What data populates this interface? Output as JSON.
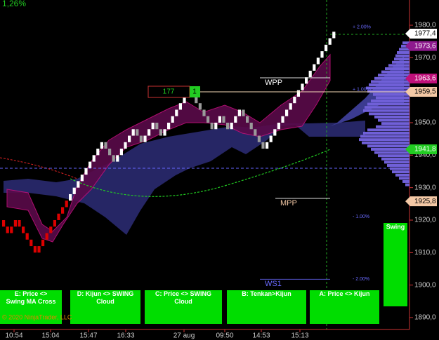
{
  "chart_data": {
    "type": "renko",
    "corner_label": "1,26%",
    "ylim": [
      1890,
      1980
    ],
    "yticks": [
      {
        "value": 1890,
        "label": "1890,0"
      },
      {
        "value": 1900,
        "label": "1900,0"
      },
      {
        "value": 1910,
        "label": "1910,0"
      },
      {
        "value": 1920,
        "label": "1920,0"
      },
      {
        "value": 1930,
        "label": "1930,0"
      },
      {
        "value": 1940,
        "label": "1940,0"
      },
      {
        "value": 1950,
        "label": "1950,0"
      },
      {
        "value": 1960,
        "label": "1960,0"
      },
      {
        "value": 1970,
        "label": "1970,0"
      },
      {
        "value": 1980,
        "label": "1980,0"
      }
    ],
    "categories": [
      "10:54",
      "15:04",
      "15:47",
      "16:33",
      "27 aug",
      "09:50",
      "14:53",
      "15:13"
    ],
    "price_markers": [
      {
        "value": 1977.4,
        "label": "1977,4",
        "color": "#ffffff",
        "text_color": "#000000"
      },
      {
        "value": 1973.6,
        "label": "1973,6",
        "color": "#8e1a8e",
        "text_color": "#ffffff"
      },
      {
        "value": 1963.6,
        "label": "1963,6",
        "color": "#c0107a",
        "text_color": "#ffffff"
      },
      {
        "value": 1959.5,
        "label": "1959,5",
        "color": "#f4c9a6",
        "text_color": "#000000"
      },
      {
        "value": 1941.8,
        "label": "1941,8",
        "color": "#22cc22",
        "text_color": "#ffffff"
      },
      {
        "value": 1925.8,
        "label": "1925,8",
        "color": "#f4c9a6",
        "text_color": "#000000"
      }
    ],
    "percent_levels": [
      {
        "value": 1979.4,
        "label": "+ 2.00%"
      },
      {
        "value": 1960.2,
        "label": "+ 1.00%"
      },
      {
        "value": 1921.0,
        "label": "- 1.00%"
      },
      {
        "value": 1901.8,
        "label": "- 2.00%"
      }
    ],
    "pivots": [
      {
        "value": 1963.8,
        "label": "WPP"
      },
      {
        "value": 1926.7,
        "label": "MPP"
      },
      {
        "value": 1901.8,
        "label": "WS1"
      }
    ],
    "order": {
      "quantity": "177",
      "count": "1",
      "value": 1959.5
    },
    "bricks_early": {
      "color": "#dd0000",
      "values": [
        1918,
        1916,
        1918,
        1920,
        1918,
        1916,
        1914,
        1912,
        1910,
        1912,
        1914,
        1916,
        1918,
        1920,
        1922,
        1924,
        1926
      ]
    },
    "bricks": {
      "up_color": "#ffffff",
      "down_color": "#9a9a9a",
      "values": [
        1928,
        1930,
        1932,
        1934,
        1936,
        1938,
        1940,
        1942,
        1944,
        1942,
        1940,
        1938,
        1940,
        1942,
        1944,
        1946,
        1948,
        1946,
        1944,
        1946,
        1948,
        1950,
        1948,
        1946,
        1948,
        1950,
        1952,
        1954,
        1956,
        1958,
        1960,
        1958,
        1956,
        1954,
        1952,
        1950,
        1948,
        1950,
        1952,
        1950,
        1948,
        1950,
        1952,
        1954,
        1952,
        1950,
        1948,
        1946,
        1944,
        1942,
        1944,
        1946,
        1948,
        1950,
        1952,
        1954,
        1956,
        1958,
        1960,
        1962,
        1964,
        1966,
        1968,
        1970,
        1972,
        1974,
        1976,
        1978
      ]
    },
    "volume_profile": {
      "color": "#7060d8",
      "start": 1975,
      "values": [
        10,
        12,
        15,
        18,
        20,
        22,
        25,
        30,
        35,
        40,
        45,
        50,
        55,
        58,
        62,
        60,
        52,
        48,
        55,
        60,
        64,
        66,
        58,
        50,
        45,
        40,
        48,
        60,
        66,
        70,
        72,
        68,
        60,
        55,
        50,
        45,
        40,
        36,
        32,
        28,
        25,
        20,
        15,
        10,
        6
      ]
    },
    "swing_label": "Swing",
    "buttons": [
      "E: Price <> Swing MA Cross",
      "D: Kijun <> SWING Cloud",
      "C: Price <> SWING Cloud",
      "B: Tenkan>Kijun",
      "A: Price <> Kijun"
    ],
    "copyright": "© 2020 NinjaTrader, LLC"
  }
}
